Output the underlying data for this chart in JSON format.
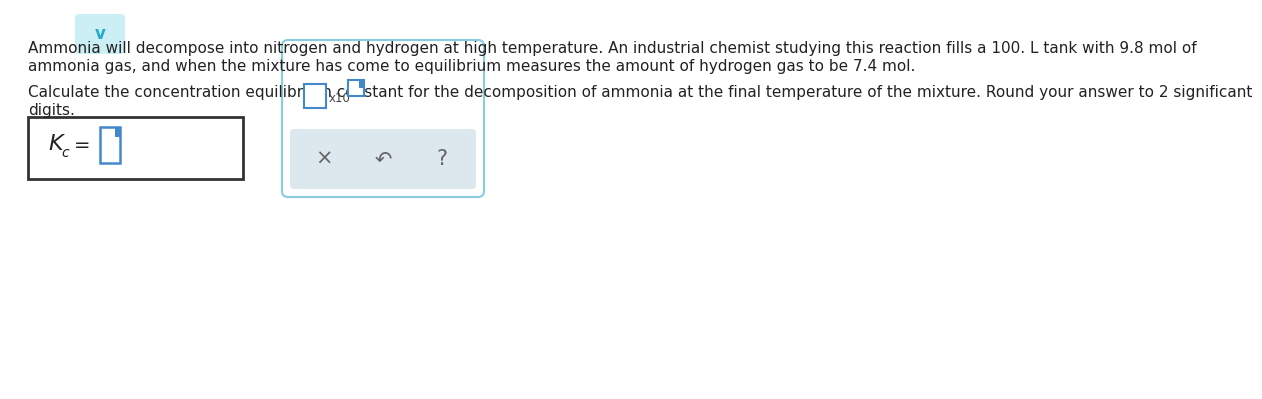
{
  "bg_color": "#ffffff",
  "chevron_color": "#cceef5",
  "chevron_text": "v",
  "chevron_text_color": "#22aacc",
  "para1_line1": "Ammonia will decompose into nitrogen and hydrogen at high temperature. An industrial chemist studying this reaction fills a 100. L tank with 9.8 mol of",
  "para1_line2": "ammonia gas, and when the mixture has come to equilibrium measures the amount of hydrogen gas to be 7.4 mol.",
  "para2_line1": "Calculate the concentration equilibrium constant for the decomposition of ammonia at the final temperature of the mixture. Round your answer to 2 significant",
  "para2_line2": "digits.",
  "text_color": "#222222",
  "left_box_border": "#333333",
  "right_box_border": "#88ccdd",
  "right_box_bg": "#ffffff",
  "input_box_color": "#4488cc",
  "kc_label": "K",
  "kc_sub": "c",
  "equals_sign": "=",
  "bottom_bar_color": "#dde8ee",
  "cross_symbol": "×",
  "undo_symbol": "↶",
  "question_symbol": "?",
  "font_size_main": 11.0,
  "font_size_kc": 16,
  "font_size_kc_sub": 10,
  "font_size_eq": 14,
  "font_size_sym": 15
}
